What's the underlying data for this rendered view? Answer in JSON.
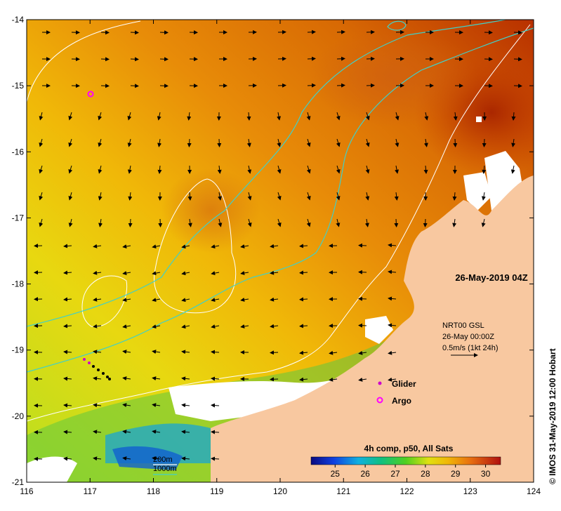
{
  "map": {
    "x_ticks": [
      "116",
      "117",
      "118",
      "119",
      "120",
      "121",
      "122",
      "123",
      "124"
    ],
    "y_ticks": [
      "-14",
      "-15",
      "-16",
      "-17",
      "-18",
      "-19",
      "-20",
      "-21"
    ],
    "lon_range": [
      116,
      124
    ],
    "lat_range": [
      -21,
      -14
    ]
  },
  "annotations": {
    "timestamp": "26-May-2019 04Z",
    "current_source": "NRT00 GSL",
    "current_time": "26-May 00:00Z",
    "current_scale": "0.5m/s (1kt 24h)",
    "composite_label": "4h comp, p50, All Sats"
  },
  "legend": {
    "glider": "Glider",
    "argo": "Argo",
    "glider_color": "#cc00cc",
    "argo_color": "#ff00ff"
  },
  "isobaths": {
    "label_200": "200m",
    "label_1000": "1000m",
    "color_200": "#ffffff",
    "color_1000": "#40d0c8"
  },
  "colorbar": {
    "ticks": [
      "25",
      "26",
      "27",
      "28",
      "29",
      "30"
    ],
    "range": [
      24.2,
      30.5
    ]
  },
  "credit": "© IMOS 31-May-2019 12:00 Hobart",
  "colors": {
    "land": "#f8c8a0",
    "sst_warm": "#b83200",
    "sst_mid": "#e88a08",
    "sst_cool": "#d8e010"
  }
}
